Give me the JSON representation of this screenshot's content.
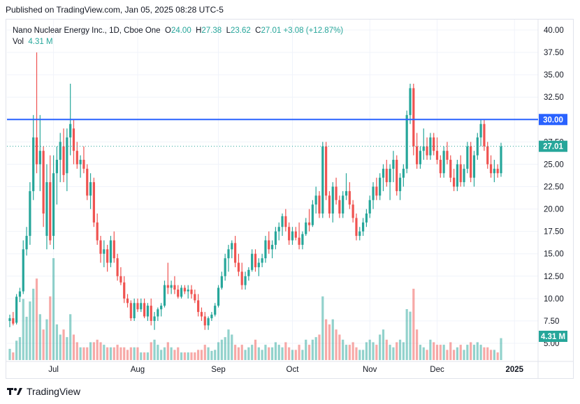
{
  "header": {
    "published": "Published on TradingView.com, Jan 05, 2025 08:28 UTC-5"
  },
  "legend": {
    "symbol": "Nano Nuclear Energy Inc., 1D, Cboe One",
    "o_label": "O",
    "o_value": "24.00",
    "h_label": "H",
    "h_value": "27.38",
    "l_label": "L",
    "l_value": "23.62",
    "c_label": "C",
    "c_value": "27.01",
    "change": "+3.08 (+12.87%)",
    "vol_label": "Vol",
    "vol_value": "4.31 M"
  },
  "footer": {
    "brand": "TradingView"
  },
  "colors": {
    "up": "#26a69a",
    "down": "#ef5350",
    "line": "#2962ff",
    "grid": "#f0f3fa"
  },
  "chart_data": {
    "type": "candlestick",
    "symbol": "Nano Nuclear Energy Inc.",
    "interval": "1D",
    "ylim": [
      3.5,
      41.5
    ],
    "y_ticks": [
      "40.00",
      "37.50",
      "35.00",
      "32.50",
      "30.00",
      "27.50",
      "25.00",
      "22.50",
      "20.00",
      "17.50",
      "15.00",
      "12.50",
      "10.00",
      "7.50",
      "5.00"
    ],
    "x_ticks": [
      "Jul",
      "Aug",
      "Sep",
      "Oct",
      "Nov",
      "Dec",
      "2025"
    ],
    "x_tick_index": [
      13,
      38,
      62,
      84,
      107,
      127,
      150
    ],
    "horizontal_line": {
      "value": 30.0,
      "label": "30.00"
    },
    "last_price": {
      "value": 27.01,
      "label": "27.01"
    },
    "volume_label": "4.31 M",
    "ohlcv": [
      [
        7.5,
        8.2,
        6.8,
        7.8,
        2.2
      ],
      [
        7.8,
        8.5,
        7.0,
        7.2,
        1.5
      ],
      [
        7.3,
        10.5,
        7.1,
        10.2,
        3.8
      ],
      [
        10.2,
        11.2,
        9.6,
        10.8,
        4.5
      ],
      [
        10.8,
        16.5,
        10.5,
        15.5,
        12.0
      ],
      [
        15.5,
        18.0,
        14.8,
        17.0,
        8.5
      ],
      [
        17.0,
        23.0,
        16.0,
        22.0,
        11.5
      ],
      [
        22.0,
        30.5,
        21.0,
        28.0,
        14.0
      ],
      [
        28.0,
        37.5,
        24.0,
        25.0,
        16.0
      ],
      [
        25.0,
        30.5,
        22.0,
        26.5,
        9.0
      ],
      [
        26.5,
        27.0,
        18.0,
        19.5,
        6.0
      ],
      [
        17.0,
        25.0,
        15.5,
        23.0,
        8.0
      ],
      [
        23.0,
        26.0,
        16.0,
        16.5,
        12.5
      ],
      [
        17.0,
        26.0,
        15.5,
        24.0,
        20.0
      ],
      [
        24.0,
        27.0,
        20.5,
        25.5,
        7.0
      ],
      [
        25.5,
        28.5,
        23.0,
        27.5,
        5.0
      ],
      [
        27.0,
        29.0,
        23.0,
        23.8,
        6.0
      ],
      [
        24.0,
        29.0,
        22.0,
        28.0,
        4.5
      ],
      [
        28.0,
        34.0,
        26.0,
        29.5,
        9.0
      ],
      [
        29.0,
        30.0,
        25.0,
        26.5,
        5.0
      ],
      [
        26.5,
        27.5,
        24.5,
        25.0,
        3.5
      ],
      [
        25.0,
        26.0,
        23.5,
        25.5,
        2.5
      ],
      [
        25.5,
        27.0,
        24.0,
        24.5,
        2.5
      ],
      [
        24.5,
        25.0,
        21.0,
        21.5,
        2.5
      ],
      [
        21.5,
        24.0,
        20.0,
        23.0,
        3.5
      ],
      [
        23.0,
        23.5,
        18.0,
        18.5,
        3.5
      ],
      [
        18.5,
        19.5,
        16.0,
        16.5,
        4.0
      ],
      [
        16.5,
        17.0,
        14.0,
        15.0,
        3.5
      ],
      [
        15.0,
        16.5,
        13.5,
        15.5,
        3.0
      ],
      [
        15.5,
        16.0,
        13.0,
        14.0,
        2.5
      ],
      [
        14.0,
        17.0,
        13.5,
        16.5,
        2.5
      ],
      [
        16.5,
        17.5,
        14.0,
        14.5,
        2.5
      ],
      [
        14.5,
        15.0,
        12.0,
        12.5,
        3.0
      ],
      [
        12.5,
        13.5,
        11.5,
        11.8,
        2.5
      ],
      [
        11.8,
        12.5,
        9.5,
        10.0,
        2.5
      ],
      [
        10.0,
        10.5,
        9.0,
        9.5,
        2.0
      ],
      [
        9.5,
        9.8,
        7.5,
        7.8,
        2.5
      ],
      [
        7.8,
        10.0,
        7.5,
        9.5,
        2.5
      ],
      [
        9.5,
        10.0,
        8.5,
        8.8,
        2.5
      ],
      [
        8.8,
        10.0,
        8.5,
        9.5,
        1.5
      ],
      [
        9.5,
        10.0,
        7.8,
        8.0,
        1.5
      ],
      [
        8.0,
        9.5,
        7.5,
        9.2,
        1.5
      ],
      [
        9.2,
        10.0,
        7.0,
        7.5,
        3.5
      ],
      [
        7.5,
        8.5,
        6.5,
        8.0,
        4.0
      ],
      [
        8.0,
        9.0,
        7.5,
        8.8,
        3.0
      ],
      [
        8.8,
        9.5,
        8.0,
        9.2,
        2.0
      ],
      [
        9.2,
        12.0,
        9.0,
        11.5,
        2.5
      ],
      [
        11.5,
        14.0,
        10.5,
        11.2,
        3.5
      ],
      [
        11.2,
        12.0,
        10.5,
        11.5,
        2.5
      ],
      [
        11.5,
        12.5,
        10.5,
        11.0,
        2.0
      ],
      [
        11.0,
        11.5,
        10.0,
        10.2,
        2.5
      ],
      [
        10.2,
        11.5,
        10.0,
        11.2,
        1.5
      ],
      [
        11.2,
        11.5,
        10.5,
        10.8,
        1.5
      ],
      [
        10.8,
        11.5,
        10.0,
        11.0,
        1.5
      ],
      [
        11.0,
        11.5,
        10.0,
        10.5,
        1.5
      ],
      [
        10.5,
        11.0,
        9.5,
        9.8,
        1.5
      ],
      [
        9.8,
        10.5,
        8.0,
        8.5,
        2.0
      ],
      [
        8.5,
        9.0,
        7.5,
        8.0,
        2.0
      ],
      [
        8.0,
        8.5,
        6.5,
        7.0,
        3.0
      ],
      [
        7.0,
        8.0,
        6.5,
        7.8,
        2.5
      ],
      [
        7.8,
        8.5,
        7.5,
        8.2,
        1.8
      ],
      [
        8.2,
        9.5,
        8.0,
        9.2,
        2.0
      ],
      [
        9.2,
        11.5,
        9.0,
        11.2,
        3.5
      ],
      [
        11.2,
        13.0,
        11.0,
        12.5,
        4.0
      ],
      [
        12.5,
        15.0,
        12.0,
        14.5,
        4.5
      ],
      [
        14.5,
        16.0,
        13.0,
        15.5,
        6.0
      ],
      [
        15.5,
        16.5,
        14.5,
        16.2,
        5.0
      ],
      [
        16.2,
        17.0,
        13.5,
        14.0,
        3.0
      ],
      [
        14.0,
        15.0,
        12.5,
        13.0,
        2.5
      ],
      [
        13.0,
        14.0,
        11.0,
        11.5,
        3.0
      ],
      [
        11.5,
        13.0,
        11.0,
        12.5,
        2.0
      ],
      [
        12.5,
        13.5,
        12.0,
        13.2,
        2.5
      ],
      [
        13.2,
        15.5,
        13.0,
        15.0,
        3.0
      ],
      [
        15.0,
        15.5,
        13.0,
        13.5,
        4.0
      ],
      [
        13.5,
        14.5,
        12.5,
        14.0,
        2.5
      ],
      [
        14.0,
        15.0,
        13.5,
        14.5,
        2.0
      ],
      [
        14.5,
        17.0,
        14.0,
        16.5,
        3.0
      ],
      [
        16.5,
        17.5,
        15.0,
        15.5,
        2.5
      ],
      [
        15.5,
        16.5,
        14.5,
        16.0,
        2.5
      ],
      [
        16.0,
        18.0,
        15.5,
        17.5,
        3.5
      ],
      [
        17.5,
        18.5,
        16.5,
        18.0,
        3.0
      ],
      [
        18.0,
        19.5,
        17.0,
        19.2,
        2.5
      ],
      [
        19.2,
        20.0,
        17.5,
        18.0,
        3.5
      ],
      [
        18.0,
        18.5,
        16.0,
        16.5,
        2.5
      ],
      [
        16.5,
        18.0,
        16.0,
        17.5,
        2.0
      ],
      [
        17.5,
        18.0,
        16.5,
        16.8,
        2.0
      ],
      [
        16.8,
        18.5,
        15.5,
        16.0,
        3.0
      ],
      [
        16.0,
        17.5,
        15.5,
        17.2,
        2.0
      ],
      [
        17.2,
        19.0,
        17.0,
        18.5,
        4.0
      ],
      [
        18.5,
        20.0,
        17.5,
        18.2,
        3.0
      ],
      [
        18.2,
        21.0,
        18.0,
        20.5,
        4.0
      ],
      [
        20.5,
        22.5,
        19.5,
        21.5,
        4.5
      ],
      [
        21.5,
        22.0,
        19.0,
        19.5,
        5.0
      ],
      [
        19.5,
        27.5,
        19.0,
        27.0,
        12.5
      ],
      [
        27.0,
        27.5,
        21.0,
        21.5,
        8.0
      ],
      [
        21.5,
        22.0,
        19.0,
        19.5,
        7.0
      ],
      [
        19.5,
        23.0,
        18.5,
        22.5,
        8.0
      ],
      [
        22.5,
        23.5,
        20.5,
        21.0,
        6.0
      ],
      [
        21.0,
        21.5,
        19.0,
        19.5,
        5.0
      ],
      [
        19.5,
        22.0,
        19.0,
        21.5,
        4.0
      ],
      [
        21.5,
        24.0,
        21.0,
        22.0,
        3.0
      ],
      [
        22.0,
        23.0,
        20.0,
        20.5,
        3.0
      ],
      [
        20.5,
        21.0,
        18.5,
        19.0,
        3.5
      ],
      [
        19.0,
        19.5,
        16.5,
        17.0,
        2.5
      ],
      [
        17.0,
        18.0,
        16.5,
        17.5,
        2.0
      ],
      [
        17.5,
        19.0,
        17.0,
        18.5,
        2.0
      ],
      [
        18.5,
        20.0,
        18.0,
        19.5,
        3.5
      ],
      [
        19.5,
        21.5,
        19.0,
        21.0,
        4.0
      ],
      [
        21.0,
        23.0,
        20.0,
        22.5,
        3.5
      ],
      [
        22.5,
        23.5,
        21.0,
        21.5,
        3.0
      ],
      [
        21.5,
        24.0,
        21.0,
        23.5,
        5.0
      ],
      [
        23.5,
        25.0,
        22.0,
        24.5,
        6.0
      ],
      [
        24.5,
        25.5,
        22.5,
        23.0,
        4.0
      ],
      [
        23.0,
        25.0,
        21.0,
        24.5,
        3.0
      ],
      [
        24.5,
        26.5,
        23.0,
        25.5,
        2.5
      ],
      [
        25.5,
        26.0,
        21.5,
        22.0,
        3.5
      ],
      [
        22.0,
        24.0,
        21.0,
        23.5,
        4.0
      ],
      [
        23.5,
        25.0,
        22.5,
        24.5,
        3.5
      ],
      [
        24.5,
        31.0,
        24.0,
        30.5,
        10.0
      ],
      [
        30.5,
        34.0,
        29.5,
        33.5,
        9.5
      ],
      [
        33.5,
        34.0,
        26.0,
        27.0,
        14.0
      ],
      [
        27.0,
        28.5,
        24.5,
        25.0,
        6.0
      ],
      [
        25.0,
        27.0,
        24.5,
        26.5,
        3.0
      ],
      [
        26.5,
        29.0,
        25.5,
        27.0,
        2.5
      ],
      [
        27.0,
        28.0,
        25.5,
        26.0,
        2.0
      ],
      [
        26.0,
        28.5,
        25.5,
        28.0,
        4.0
      ],
      [
        28.0,
        28.5,
        26.0,
        26.5,
        3.5
      ],
      [
        26.5,
        28.0,
        25.0,
        25.5,
        3.0
      ],
      [
        25.5,
        26.0,
        23.5,
        24.0,
        3.0
      ],
      [
        24.0,
        27.0,
        23.5,
        26.5,
        3.0
      ],
      [
        26.5,
        27.5,
        25.0,
        25.5,
        2.0
      ],
      [
        25.5,
        26.0,
        23.0,
        23.5,
        3.5
      ],
      [
        23.5,
        24.5,
        22.0,
        22.5,
        2.0
      ],
      [
        22.5,
        25.5,
        22.0,
        25.0,
        2.5
      ],
      [
        25.0,
        26.0,
        22.5,
        23.0,
        3.0
      ],
      [
        23.0,
        25.0,
        22.5,
        24.5,
        2.0
      ],
      [
        24.5,
        27.5,
        24.0,
        27.0,
        3.0
      ],
      [
        27.0,
        27.5,
        23.0,
        23.5,
        3.5
      ],
      [
        23.5,
        26.5,
        22.5,
        26.0,
        3.0
      ],
      [
        26.0,
        28.5,
        25.5,
        28.0,
        3.5
      ],
      [
        28.0,
        30.0,
        27.0,
        29.5,
        3.0
      ],
      [
        29.5,
        30.0,
        26.5,
        27.0,
        2.5
      ],
      [
        27.0,
        27.5,
        24.5,
        25.0,
        2.5
      ],
      [
        25.0,
        26.0,
        23.5,
        24.0,
        2.0
      ],
      [
        24.0,
        25.5,
        23.0,
        24.5,
        2.0
      ],
      [
        24.5,
        25.0,
        23.5,
        24.0,
        1.5
      ],
      [
        24.0,
        27.4,
        23.6,
        27.0,
        4.3
      ]
    ]
  }
}
